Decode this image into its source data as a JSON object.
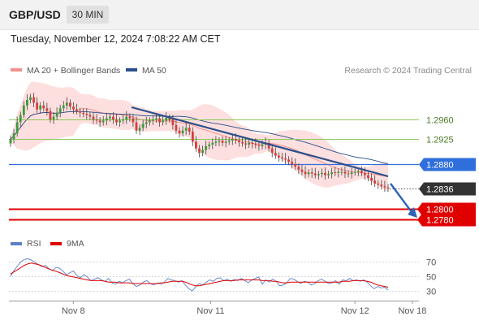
{
  "header": {
    "pair": "GBP/USD",
    "timeframe": "30 MIN"
  },
  "timestamp": "Tuesday, November 12, 2024 7:08:22 AM CET",
  "legend": {
    "items": [
      {
        "label": "MA 20 + Bollinger Bands",
        "color": "#f4918f"
      },
      {
        "label": "MA 50",
        "color": "#2b4f8c"
      }
    ],
    "credit": "Research © 2024 Trading Central"
  },
  "rsi_legend": {
    "items": [
      {
        "label": "RSI",
        "color": "#5b80c8"
      },
      {
        "label": "9MA",
        "color": "#e00000"
      }
    ]
  },
  "chart_data": [
    {
      "type": "candlestick",
      "title": "",
      "y_axis": {
        "reference": [
          {
            "value": 1.296,
            "y": 147
          },
          {
            "value": 1.2925,
            "y": 171
          }
        ]
      },
      "levels": [
        {
          "label": "1.2960",
          "value": 1.296,
          "style": "resistance",
          "color": "#8fc95a"
        },
        {
          "label": "1.2925",
          "value": 1.2925,
          "style": "resistance",
          "color": "#8fc95a"
        },
        {
          "label": "1.2880",
          "value": 1.288,
          "style": "pivot",
          "color": "#2f6fdc"
        },
        {
          "label": "1.2836",
          "value": 1.2836,
          "style": "last-price",
          "color": "#333333"
        },
        {
          "label": "1.2800",
          "value": 1.28,
          "style": "support",
          "color": "#e00000"
        },
        {
          "label": "1.2780",
          "value": 1.278,
          "style": "support",
          "color": "#e00000"
        }
      ],
      "x_labels": [
        {
          "label": "Nov 8",
          "pos": 0.157
        },
        {
          "label": "Nov 11",
          "pos": 0.492
        },
        {
          "label": "Nov 12",
          "pos": 0.844
        },
        {
          "label": "Nov 18",
          "pos": 0.984
        }
      ],
      "series_close": [
        1.2925,
        1.2935,
        1.2955,
        1.2968,
        1.2985,
        1.2995,
        1.3,
        1.299,
        1.2978,
        1.2985,
        1.298,
        1.2975,
        1.296,
        1.2965,
        1.2972,
        1.298,
        1.2985,
        1.299,
        1.2983,
        1.2978,
        1.2975,
        1.2972,
        1.297,
        1.2968,
        1.2965,
        1.296,
        1.2958,
        1.2955,
        1.2958,
        1.2962,
        1.2965,
        1.296,
        1.2955,
        1.2958,
        1.296,
        1.2965,
        1.2962,
        1.2955,
        1.294,
        1.2945,
        1.2952,
        1.2955,
        1.2958,
        1.296,
        1.2962,
        1.2955,
        1.2958,
        1.2963,
        1.296,
        1.295,
        1.294,
        1.2935,
        1.294,
        1.2945,
        1.2938,
        1.292,
        1.2908,
        1.29,
        1.2905,
        1.2912,
        1.2915,
        1.2918,
        1.292,
        1.2922,
        1.2918,
        1.292,
        1.2922,
        1.2925,
        1.2922,
        1.2919,
        1.2917,
        1.2915,
        1.2918,
        1.2916,
        1.2914,
        1.2912,
        1.2915,
        1.2918,
        1.2908,
        1.29,
        1.2895,
        1.2892,
        1.289,
        1.2888,
        1.2884,
        1.288,
        1.2875,
        1.287,
        1.2866,
        1.2862,
        1.2865,
        1.2863,
        1.286,
        1.2862,
        1.2864,
        1.286,
        1.2862,
        1.2865,
        1.2864,
        1.2866,
        1.2866,
        1.2863,
        1.2862,
        1.2865,
        1.2866,
        1.2868,
        1.2864,
        1.286,
        1.2855,
        1.285,
        1.2845,
        1.2843,
        1.284,
        1.2838,
        1.2836
      ],
      "projection": {
        "from_value": 1.2845,
        "to_value": 1.2785
      }
    },
    {
      "type": "line",
      "title": "RSI",
      "y_ticks": [
        {
          "label": "70",
          "value": 70
        },
        {
          "label": "50",
          "value": 50
        },
        {
          "label": "30",
          "value": 30
        }
      ],
      "series": [
        {
          "name": "RSI",
          "values": [
            50,
            58,
            64,
            70,
            73,
            74,
            72,
            69,
            66,
            63,
            65,
            60,
            58,
            62,
            61,
            57,
            52,
            55,
            57,
            51,
            48,
            52,
            49,
            44,
            46,
            48,
            45,
            43,
            47,
            41,
            39,
            43,
            41,
            44,
            46,
            40,
            36,
            38,
            42,
            44,
            40,
            38,
            41,
            39,
            42,
            47,
            45,
            44,
            42,
            44,
            38,
            33,
            30,
            36,
            40,
            38,
            42,
            45,
            43,
            47,
            48,
            44,
            46,
            43,
            46,
            44,
            47,
            44,
            41,
            45,
            47,
            49,
            39,
            45,
            42,
            46,
            43,
            37,
            38,
            41,
            47,
            46,
            43,
            40,
            43,
            42,
            38,
            40,
            44,
            46,
            43,
            40,
            41,
            44,
            39,
            45,
            44,
            47,
            44,
            45,
            43,
            45,
            42,
            37,
            33,
            36,
            34,
            35,
            31
          ]
        },
        {
          "name": "9MA",
          "values": [
            53,
            56,
            59,
            62,
            65,
            67,
            68,
            67,
            66,
            64,
            62,
            60,
            58,
            57,
            55,
            53,
            51,
            50,
            49,
            48,
            47,
            46,
            45,
            44,
            44,
            44,
            44,
            43,
            42,
            42,
            42,
            41,
            41,
            41,
            41,
            40,
            40,
            40,
            40,
            40,
            40,
            40,
            40,
            41,
            41,
            42,
            43,
            43,
            43,
            43,
            42,
            40,
            38,
            37,
            37,
            38,
            39,
            40,
            41,
            42,
            43,
            44,
            44,
            44,
            44,
            45,
            45,
            45,
            45,
            45,
            45,
            45,
            44,
            44,
            44,
            43,
            43,
            42,
            41,
            41,
            42,
            42,
            42,
            42,
            42,
            42,
            42,
            42,
            42,
            42,
            42,
            42,
            42,
            42,
            42,
            43,
            43,
            43,
            44,
            44,
            44,
            44,
            43,
            42,
            40,
            38,
            37,
            36,
            35
          ]
        }
      ]
    }
  ]
}
